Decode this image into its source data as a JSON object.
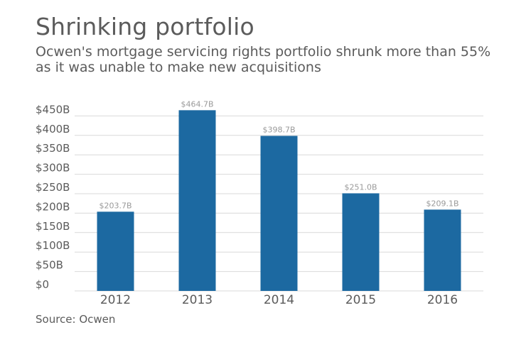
{
  "header": {
    "title": "Shrinking portfolio",
    "subtitle": "Ocwen's mortgage servicing rights portfolio shrunk more than 55% as it was unable to make new acquisitions"
  },
  "footer": {
    "source": "Source: Ocwen"
  },
  "colors": {
    "bar": "#1c69a1",
    "grid": "#d9d9d9",
    "axis_text": "#5b5b5b",
    "value_label": "#9a9a9a"
  },
  "chart_data": {
    "type": "bar",
    "title": "Shrinking portfolio",
    "xlabel": "",
    "ylabel": "",
    "categories": [
      "2012",
      "2013",
      "2014",
      "2015",
      "2016"
    ],
    "values": [
      203.7,
      464.7,
      398.7,
      251.0,
      209.1
    ],
    "value_labels": [
      "$203.7B",
      "$464.7B",
      "$398.7B",
      "$251.0B",
      "$209.1B"
    ],
    "ylim": [
      0,
      450
    ],
    "yticks": [
      0,
      50,
      100,
      150,
      200,
      250,
      300,
      350,
      400,
      450
    ],
    "ytick_labels": [
      "$0",
      "$50B",
      "$100B",
      "$150B",
      "$200B",
      "$250B",
      "$300B",
      "$350B",
      "$400B",
      "$450B"
    ],
    "grid": true,
    "legend": "none"
  }
}
